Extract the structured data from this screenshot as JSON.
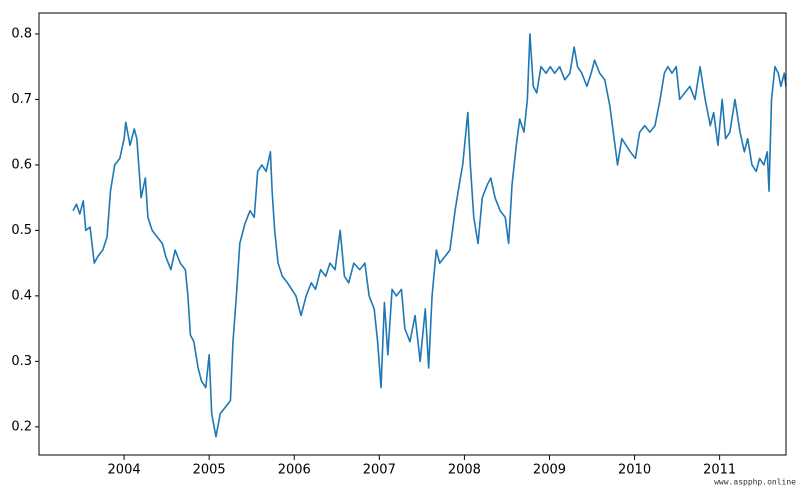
{
  "chart_data": {
    "type": "line",
    "color": "#1f77b4",
    "x": [
      2003.4,
      2003.44,
      2003.48,
      2003.52,
      2003.55,
      2003.6,
      2003.65,
      2003.69,
      2003.75,
      2003.8,
      2003.84,
      2003.89,
      2003.95,
      2004.0,
      2004.02,
      2004.07,
      2004.12,
      2004.15,
      2004.2,
      2004.25,
      2004.28,
      2004.33,
      2004.39,
      2004.45,
      2004.49,
      2004.55,
      2004.6,
      2004.66,
      2004.72,
      2004.75,
      2004.78,
      2004.82,
      2004.87,
      2004.91,
      2004.96,
      2005.0,
      2005.03,
      2005.08,
      2005.13,
      2005.19,
      2005.25,
      2005.28,
      2005.32,
      2005.36,
      2005.42,
      2005.48,
      2005.53,
      2005.57,
      2005.62,
      2005.67,
      2005.72,
      2005.74,
      2005.77,
      2005.81,
      2005.86,
      2005.92,
      2005.97,
      2006.02,
      2006.08,
      2006.14,
      2006.2,
      2006.25,
      2006.31,
      2006.37,
      2006.42,
      2006.48,
      2006.54,
      2006.59,
      2006.64,
      2006.7,
      2006.77,
      2006.83,
      2006.88,
      2006.94,
      2006.98,
      2007.02,
      2007.06,
      2007.1,
      2007.15,
      2007.2,
      2007.26,
      2007.3,
      2007.36,
      2007.42,
      2007.48,
      2007.54,
      2007.58,
      2007.62,
      2007.67,
      2007.71,
      2007.77,
      2007.83,
      2007.89,
      2007.94,
      2007.98,
      2008.04,
      2008.07,
      2008.11,
      2008.16,
      2008.21,
      2008.27,
      2008.31,
      2008.36,
      2008.42,
      2008.48,
      2008.52,
      2008.56,
      2008.61,
      2008.65,
      2008.7,
      2008.74,
      2008.77,
      2008.81,
      2008.85,
      2008.9,
      2008.96,
      2009.01,
      2009.06,
      2009.12,
      2009.18,
      2009.24,
      2009.29,
      2009.33,
      2009.38,
      2009.44,
      2009.49,
      2009.53,
      2009.59,
      2009.65,
      2009.71,
      2009.76,
      2009.8,
      2009.85,
      2009.9,
      2009.95,
      2010.01,
      2010.06,
      2010.12,
      2010.18,
      2010.24,
      2010.3,
      2010.35,
      2010.39,
      2010.44,
      2010.49,
      2010.53,
      2010.59,
      2010.65,
      2010.71,
      2010.77,
      2010.83,
      2010.89,
      2010.93,
      2010.98,
      2011.03,
      2011.07,
      2011.12,
      2011.18,
      2011.24,
      2011.29,
      2011.33,
      2011.38,
      2011.43,
      2011.47,
      2011.52,
      2011.56,
      2011.58,
      2011.61,
      2011.65,
      2011.69,
      2011.72,
      2011.76,
      2011.78
    ],
    "values": [
      0.53,
      0.54,
      0.525,
      0.545,
      0.5,
      0.505,
      0.45,
      0.46,
      0.47,
      0.49,
      0.56,
      0.6,
      0.61,
      0.64,
      0.665,
      0.63,
      0.655,
      0.64,
      0.55,
      0.58,
      0.52,
      0.5,
      0.49,
      0.48,
      0.46,
      0.44,
      0.47,
      0.45,
      0.44,
      0.4,
      0.34,
      0.33,
      0.29,
      0.27,
      0.26,
      0.31,
      0.22,
      0.185,
      0.22,
      0.23,
      0.24,
      0.33,
      0.4,
      0.48,
      0.51,
      0.53,
      0.52,
      0.59,
      0.6,
      0.59,
      0.62,
      0.56,
      0.5,
      0.45,
      0.43,
      0.42,
      0.41,
      0.4,
      0.37,
      0.4,
      0.42,
      0.41,
      0.44,
      0.43,
      0.45,
      0.44,
      0.5,
      0.43,
      0.42,
      0.45,
      0.44,
      0.45,
      0.4,
      0.38,
      0.33,
      0.26,
      0.39,
      0.31,
      0.41,
      0.4,
      0.41,
      0.35,
      0.33,
      0.37,
      0.3,
      0.38,
      0.29,
      0.4,
      0.47,
      0.45,
      0.46,
      0.47,
      0.53,
      0.57,
      0.6,
      0.68,
      0.6,
      0.52,
      0.48,
      0.55,
      0.57,
      0.58,
      0.55,
      0.53,
      0.52,
      0.48,
      0.57,
      0.63,
      0.67,
      0.65,
      0.7,
      0.8,
      0.72,
      0.71,
      0.75,
      0.74,
      0.75,
      0.74,
      0.75,
      0.73,
      0.74,
      0.78,
      0.75,
      0.74,
      0.72,
      0.74,
      0.76,
      0.74,
      0.73,
      0.69,
      0.64,
      0.6,
      0.64,
      0.63,
      0.62,
      0.61,
      0.65,
      0.66,
      0.65,
      0.66,
      0.7,
      0.74,
      0.75,
      0.74,
      0.75,
      0.7,
      0.71,
      0.72,
      0.7,
      0.75,
      0.7,
      0.66,
      0.68,
      0.63,
      0.7,
      0.64,
      0.65,
      0.7,
      0.65,
      0.62,
      0.64,
      0.6,
      0.59,
      0.61,
      0.6,
      0.62,
      0.56,
      0.7,
      0.75,
      0.74,
      0.72,
      0.74,
      0.72
    ],
    "xlim": [
      2003.0,
      2011.78
    ],
    "xticks": [
      2004,
      2005,
      2006,
      2007,
      2008,
      2009,
      2010,
      2011
    ],
    "ylim": [
      0.157,
      0.832
    ],
    "yticks": [
      0.2,
      0.3,
      0.4,
      0.5,
      0.6,
      0.7,
      0.8
    ],
    "grid": false
  },
  "watermark": "www.aspphp.online"
}
